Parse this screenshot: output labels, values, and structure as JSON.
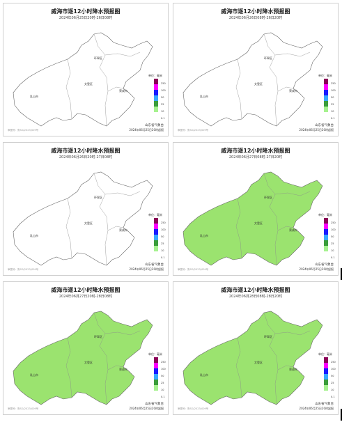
{
  "panels": [
    {
      "title": "威海市逐12小时降水预报图",
      "subtitle": "2024年06月25日20时-26日08时",
      "fill_level": "none"
    },
    {
      "title": "威海市逐12小时降水预报图",
      "subtitle": "2024年06月26日08时-26日20时",
      "fill_level": "none"
    },
    {
      "title": "威海市逐12小时降水预报图",
      "subtitle": "2024年06月26日20时-27日08时",
      "fill_level": "none"
    },
    {
      "title": "威海市逐12小时降水预报图",
      "subtitle": "2024年06月27日08时-27日20时",
      "fill_level": "0.1-10"
    },
    {
      "title": "威海市逐12小时降水预报图",
      "subtitle": "2024年06月27日20时-28日08时",
      "fill_level": "0.1-10"
    },
    {
      "title": "威海市逐12小时降水预报图",
      "subtitle": "2024年06月28日08时-28日20时",
      "fill_level": "0.1-10"
    }
  ],
  "regions": {
    "north": "环翠区",
    "center": "文登区",
    "east": "荣成市",
    "west": "乳山市"
  },
  "legend": {
    "title": "单位：毫米",
    "ticks": [
      "250",
      "100",
      "50",
      "25",
      "10",
      "0.1"
    ],
    "colors": [
      "#8b0057",
      "#ff00ff",
      "#1a1aff",
      "#38a8ff",
      "#3a9c3a",
      "#a6f28f"
    ]
  },
  "issuer": "山东省气象台",
  "issue_time": "2024年06月25日20时起报",
  "approval": "审图号：鲁SG(2023)009号",
  "fill_color": "#9be36f"
}
